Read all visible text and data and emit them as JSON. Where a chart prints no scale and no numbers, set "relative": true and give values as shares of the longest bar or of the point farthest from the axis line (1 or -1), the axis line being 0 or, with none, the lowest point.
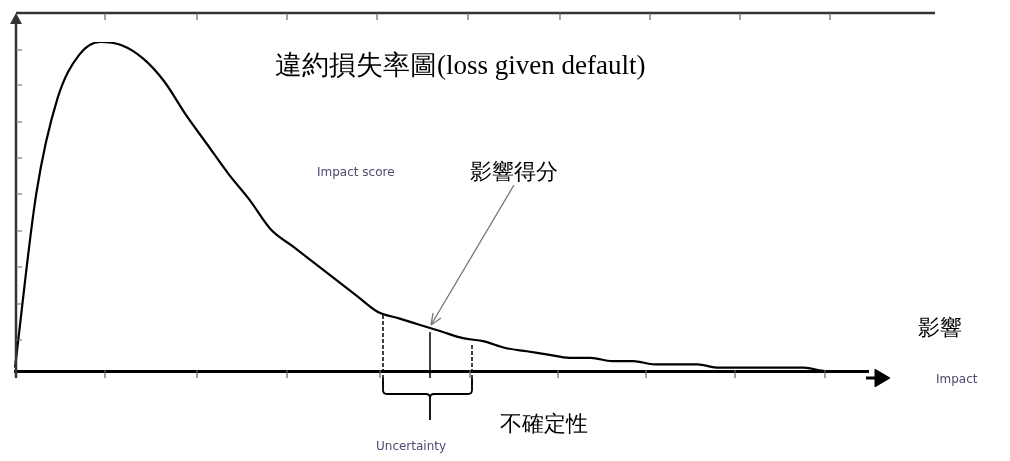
{
  "chart_data": {
    "type": "line",
    "title": "違約損失率圖(loss given default)",
    "relative": true,
    "categories": [
      null,
      null,
      null,
      null,
      null,
      null,
      null,
      null,
      null,
      null,
      null,
      null,
      null,
      null,
      null,
      null,
      null,
      null,
      null,
      null,
      null,
      null,
      null,
      null,
      null,
      null,
      null,
      null,
      null,
      null,
      null,
      null,
      null,
      null,
      null,
      null,
      null,
      null,
      null,
      null,
      null
    ],
    "series": [
      {
        "color": "#000000",
        "values": [
          0.01,
          0.54,
          0.83,
          0.96,
          1,
          0.99,
          0.95,
          0.88,
          0.78,
          0.69,
          0.6,
          0.52,
          0.43,
          0.38,
          0.33,
          0.28,
          0.23,
          0.18,
          0.16,
          0.14,
          0.12,
          0.1,
          0.09,
          0.07,
          0.06,
          0.05,
          0.04,
          0.04,
          0.03,
          0.03,
          0.02,
          0.02,
          0.02,
          0.01,
          0.01,
          0.01,
          0.01,
          0.01,
          0,
          0,
          0
        ]
      }
    ],
    "annotations": [
      "Impact score",
      "影響得分",
      "影響",
      "Impact",
      "Uncertainty",
      "不確定性"
    ]
  }
}
